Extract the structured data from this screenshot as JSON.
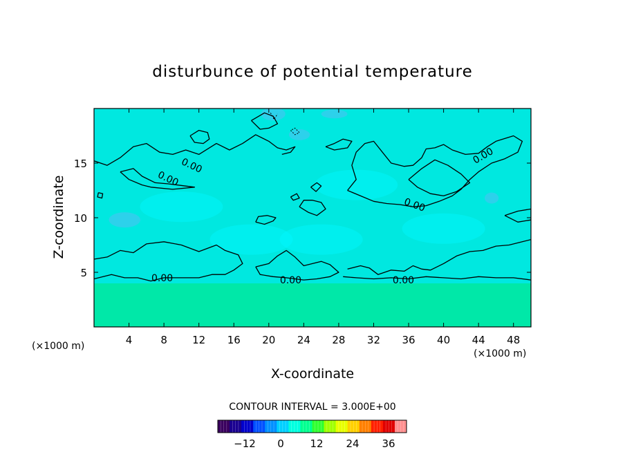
{
  "chart_data": {
    "type": "heatmap",
    "title": "disturbunce of potential temperature",
    "xlabel": "X-coordinate",
    "ylabel": "Z-coordinate",
    "x_unit": "(×1000 m)",
    "y_unit": "(×1000 m)",
    "xlim": [
      0,
      50
    ],
    "ylim": [
      0,
      20
    ],
    "x_ticks": [
      "4",
      "8",
      "12",
      "16",
      "20",
      "24",
      "28",
      "32",
      "36",
      "40",
      "44",
      "48"
    ],
    "y_ticks": [
      "5",
      "10",
      "15"
    ],
    "contour_interval_text": "CONTOUR INTERVAL = 3.000E+00",
    "contour_label": "0.00",
    "colorbar": {
      "min": -21,
      "max": 42,
      "ticks": [
        "-12",
        "0",
        "12",
        "24",
        "36"
      ],
      "colors": [
        "#3a005e",
        "#1a0090",
        "#0000cc",
        "#0050ff",
        "#0090ff",
        "#00d0ff",
        "#00ffe0",
        "#00ff90",
        "#30ff30",
        "#a0ff00",
        "#e8ff00",
        "#ffd000",
        "#ff8000",
        "#ff2000",
        "#e00000",
        "#ff9090"
      ]
    },
    "field_description_values": {
      "background_value": 0,
      "colors": {
        "upper_field": "#00e8e0",
        "lower_band": "#00e8a8",
        "patch": "#00f8ff",
        "cool_patch": "#40c8f0"
      }
    },
    "contours_zero_level": [
      {
        "points": [
          [
            0.5,
            12.3
          ],
          [
            0.4,
            11.9
          ],
          [
            0.9,
            11.8
          ],
          [
            1.0,
            12.2
          ],
          [
            0.5,
            12.3
          ]
        ]
      },
      {
        "points": [
          [
            0,
            15.2
          ],
          [
            1.5,
            14.8
          ],
          [
            3,
            15.5
          ],
          [
            4.5,
            16.5
          ],
          [
            6,
            16.8
          ],
          [
            7.5,
            16.0
          ],
          [
            9,
            15.8
          ],
          [
            10.5,
            16.2
          ],
          [
            12,
            15.8
          ],
          [
            14,
            16.8
          ],
          [
            15.5,
            16.2
          ],
          [
            17,
            16.8
          ],
          [
            18.5,
            17.6
          ],
          [
            20,
            17.0
          ],
          [
            21,
            16.4
          ],
          [
            22,
            16.2
          ],
          [
            23,
            16.5
          ],
          [
            22.5,
            16.0
          ],
          [
            21.5,
            15.8
          ]
        ]
      },
      {
        "points": [
          [
            3,
            14.2
          ],
          [
            4.5,
            14.5
          ],
          [
            5.5,
            13.8
          ],
          [
            7,
            13.2
          ],
          [
            8.5,
            13.1
          ],
          [
            10.5,
            12.9
          ],
          [
            11.5,
            12.8
          ],
          [
            9,
            12.6
          ],
          [
            6.5,
            12.8
          ],
          [
            5.5,
            13.0
          ],
          [
            4,
            13.5
          ],
          [
            3,
            14.2
          ]
        ]
      },
      {
        "points": [
          [
            0,
            6.2
          ],
          [
            1.5,
            6.4
          ],
          [
            3,
            7.0
          ],
          [
            4.5,
            6.8
          ],
          [
            6,
            7.6
          ],
          [
            8,
            7.8
          ],
          [
            10,
            7.5
          ],
          [
            12,
            6.9
          ],
          [
            14,
            7.5
          ],
          [
            15,
            7.0
          ],
          [
            16.5,
            6.6
          ],
          [
            17,
            5.8
          ],
          [
            16,
            5.2
          ],
          [
            15,
            4.8
          ],
          [
            13.5,
            4.8
          ],
          [
            12,
            4.5
          ],
          [
            10,
            4.5
          ],
          [
            8,
            4.5
          ],
          [
            6.5,
            4.2
          ],
          [
            5,
            4.5
          ],
          [
            3.5,
            4.5
          ],
          [
            2,
            4.8
          ],
          [
            0,
            4.4
          ]
        ]
      },
      {
        "points": [
          [
            18.5,
            5.5
          ],
          [
            20,
            5.8
          ],
          [
            21,
            6.5
          ],
          [
            22,
            7.0
          ],
          [
            23,
            6.4
          ],
          [
            24,
            5.6
          ],
          [
            25,
            5.8
          ],
          [
            26,
            6.0
          ],
          [
            27,
            5.7
          ],
          [
            28,
            5.0
          ],
          [
            27,
            4.6
          ],
          [
            25.5,
            4.4
          ],
          [
            24,
            4.3
          ],
          [
            22,
            4.5
          ],
          [
            20.5,
            4.6
          ],
          [
            19,
            4.8
          ],
          [
            18.5,
            5.5
          ]
        ]
      },
      {
        "points": [
          [
            29,
            5.3
          ],
          [
            30.5,
            5.6
          ],
          [
            31.5,
            5.4
          ],
          [
            32.5,
            4.8
          ],
          [
            34,
            5.2
          ],
          [
            35.5,
            5.1
          ],
          [
            36.5,
            5.6
          ],
          [
            37.5,
            5.3
          ],
          [
            38.5,
            5.2
          ],
          [
            40,
            5.8
          ],
          [
            41.5,
            6.5
          ],
          [
            43,
            6.9
          ],
          [
            44.5,
            7.0
          ],
          [
            46,
            7.4
          ],
          [
            47.5,
            7.5
          ],
          [
            49,
            7.8
          ],
          [
            50,
            8.0
          ]
        ]
      },
      {
        "points": [
          [
            28.5,
            4.6
          ],
          [
            30,
            4.5
          ],
          [
            32,
            4.4
          ],
          [
            34,
            4.5
          ],
          [
            36,
            4.4
          ],
          [
            38,
            4.6
          ],
          [
            40,
            4.5
          ],
          [
            42,
            4.4
          ],
          [
            44,
            4.6
          ],
          [
            46,
            4.5
          ],
          [
            48,
            4.5
          ],
          [
            50,
            4.3
          ]
        ]
      },
      {
        "points": [
          [
            29,
            12.5
          ],
          [
            30.5,
            12.0
          ],
          [
            32,
            11.5
          ],
          [
            33.5,
            11.3
          ],
          [
            35,
            11.2
          ],
          [
            36.5,
            11.0
          ],
          [
            38,
            11.1
          ],
          [
            39.5,
            11.5
          ],
          [
            41,
            12.0
          ],
          [
            42,
            12.6
          ],
          [
            43,
            13.5
          ],
          [
            44,
            14.2
          ],
          [
            45.5,
            15.0
          ],
          [
            47,
            15.4
          ],
          [
            48.5,
            16.0
          ],
          [
            49,
            17.0
          ],
          [
            48,
            17.5
          ],
          [
            46,
            17.0
          ],
          [
            45,
            16.5
          ],
          [
            44,
            15.9
          ],
          [
            42.5,
            15.8
          ],
          [
            41,
            16.2
          ],
          [
            40,
            16.7
          ],
          [
            39,
            16.4
          ],
          [
            38,
            16.3
          ],
          [
            37.5,
            15.5
          ],
          [
            36.5,
            14.8
          ],
          [
            35.5,
            14.7
          ],
          [
            34,
            15.0
          ],
          [
            33,
            16.0
          ],
          [
            32,
            17.0
          ],
          [
            31,
            16.8
          ],
          [
            30,
            16.0
          ],
          [
            29.5,
            14.8
          ],
          [
            30,
            13.5
          ],
          [
            29,
            12.5
          ]
        ]
      },
      {
        "points": [
          [
            36,
            13.5
          ],
          [
            37.5,
            14.5
          ],
          [
            39,
            15.3
          ],
          [
            40.5,
            14.8
          ],
          [
            42,
            14.0
          ],
          [
            43,
            13.2
          ],
          [
            41.5,
            12.4
          ],
          [
            40,
            12.0
          ],
          [
            38.5,
            12.2
          ],
          [
            37,
            12.8
          ],
          [
            36,
            13.5
          ]
        ]
      },
      {
        "points": [
          [
            11,
            17.5
          ],
          [
            12,
            18.0
          ],
          [
            13,
            17.8
          ],
          [
            13.2,
            17.2
          ],
          [
            12.5,
            16.8
          ],
          [
            11.5,
            16.9
          ],
          [
            11,
            17.5
          ]
        ]
      },
      {
        "points": [
          [
            18,
            18.9
          ],
          [
            19.5,
            19.6
          ],
          [
            20.5,
            19.3
          ],
          [
            21,
            18.6
          ],
          [
            20,
            18.2
          ],
          [
            19,
            18.1
          ],
          [
            18,
            18.9
          ]
        ]
      },
      {
        "points": [
          [
            47,
            10.2
          ],
          [
            48.5,
            10.6
          ],
          [
            50,
            10.8
          ],
          [
            50,
            9.8
          ],
          [
            48.5,
            9.6
          ],
          [
            47,
            10.2
          ]
        ]
      },
      {
        "points": [
          [
            18.5,
            9.6
          ],
          [
            19.5,
            9.4
          ],
          [
            20.5,
            9.7
          ],
          [
            20.8,
            10.0
          ],
          [
            19.8,
            10.2
          ],
          [
            18.8,
            10.1
          ],
          [
            18.5,
            9.6
          ]
        ]
      },
      {
        "points": [
          [
            23.5,
            11.0
          ],
          [
            24.5,
            10.5
          ],
          [
            25.5,
            10.2
          ],
          [
            26.5,
            10.8
          ],
          [
            26,
            11.4
          ],
          [
            25,
            11.6
          ],
          [
            24,
            11.6
          ],
          [
            23.5,
            11.0
          ]
        ]
      },
      {
        "points": [
          [
            26.5,
            16.5
          ],
          [
            27.5,
            16.8
          ],
          [
            28.5,
            17.2
          ],
          [
            29.5,
            17.0
          ],
          [
            29,
            16.4
          ],
          [
            27.5,
            16.2
          ],
          [
            26.5,
            16.5
          ]
        ]
      },
      {
        "points": [
          [
            24.8,
            12.8
          ],
          [
            25.5,
            13.2
          ],
          [
            26,
            12.9
          ],
          [
            25.4,
            12.4
          ],
          [
            24.8,
            12.8
          ]
        ]
      },
      {
        "points": [
          [
            22.5,
            11.9
          ],
          [
            23.2,
            12.2
          ],
          [
            23.5,
            11.8
          ],
          [
            22.8,
            11.6
          ],
          [
            22.5,
            11.9
          ]
        ]
      }
    ],
    "contour_label_positions": [
      {
        "x": 7.8,
        "y": 4.5,
        "text": "0.00",
        "angle": 0
      },
      {
        "x": 22.5,
        "y": 4.3,
        "text": "0.00",
        "angle": 0
      },
      {
        "x": 35.4,
        "y": 4.3,
        "text": "0.00",
        "angle": 0
      },
      {
        "x": 8.5,
        "y": 13.6,
        "text": "0.00",
        "angle": 25
      },
      {
        "x": 11.2,
        "y": 14.8,
        "text": "0.00",
        "angle": 25
      },
      {
        "x": 36.7,
        "y": 11.2,
        "text": "0.00",
        "angle": 20
      },
      {
        "x": 44.5,
        "y": 15.7,
        "text": "0.00",
        "angle": -30
      }
    ],
    "cool_patches": [
      {
        "cx": 3.5,
        "cy": 9.8,
        "rx": 1.8,
        "ry": 0.7
      },
      {
        "cx": 20.5,
        "cy": 19.5,
        "rx": 1.4,
        "ry": 0.6
      },
      {
        "cx": 23.5,
        "cy": 17.6,
        "rx": 1.2,
        "ry": 0.5
      },
      {
        "cx": 27.5,
        "cy": 19.5,
        "rx": 1.5,
        "ry": 0.4
      },
      {
        "cx": 45.5,
        "cy": 11.8,
        "rx": 0.8,
        "ry": 0.5
      }
    ],
    "dashed_contours": [
      {
        "points": [
          [
            22.5,
            18.0
          ],
          [
            23.0,
            17.6
          ],
          [
            23.5,
            17.8
          ],
          [
            23.0,
            18.2
          ],
          [
            22.5,
            18.0
          ]
        ]
      },
      {
        "points": [
          [
            20.2,
            19.6
          ],
          [
            20.6,
            19.0
          ],
          [
            21.0,
            19.5
          ]
        ]
      }
    ]
  }
}
